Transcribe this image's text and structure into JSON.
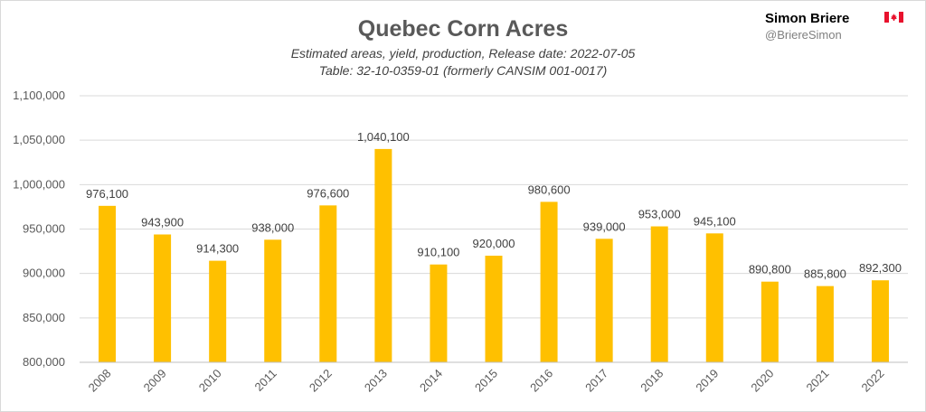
{
  "header": {
    "author": "Simon Briere",
    "handle": "@BriereSimon",
    "flag_colors": {
      "red": "#e8112d",
      "white": "#ffffff"
    }
  },
  "chart_data": {
    "type": "bar",
    "title": "Quebec Corn Acres",
    "subtitle_lines": [
      "Estimated areas, yield, production, Release date: 2022-07-05",
      "Table: 32-10-0359-01 (formerly CANSIM 001-0017)"
    ],
    "categories": [
      "2008",
      "2009",
      "2010",
      "2011",
      "2012",
      "2013",
      "2014",
      "2015",
      "2016",
      "2017",
      "2018",
      "2019",
      "2020",
      "2021",
      "2022"
    ],
    "values": [
      976100,
      943900,
      914300,
      938000,
      976600,
      1040100,
      910100,
      920000,
      980600,
      939000,
      953000,
      945100,
      890800,
      885800,
      892300
    ],
    "value_labels": [
      "976,100",
      "943,900",
      "914,300",
      "938,000",
      "976,600",
      "1,040,100",
      "910,100",
      "920,000",
      "980,600",
      "939,000",
      "953,000",
      "945,100",
      "890,800",
      "885,800",
      "892,300"
    ],
    "ylim": [
      800000,
      1100000
    ],
    "yticks": [
      800000,
      850000,
      900000,
      950000,
      1000000,
      1050000,
      1100000
    ],
    "ytick_labels": [
      "800,000",
      "850,000",
      "900,000",
      "950,000",
      "1,000,000",
      "1,050,000",
      "1,100,000"
    ],
    "grid": true,
    "bar_color": "#ffc000",
    "xlabel": "",
    "ylabel": ""
  }
}
